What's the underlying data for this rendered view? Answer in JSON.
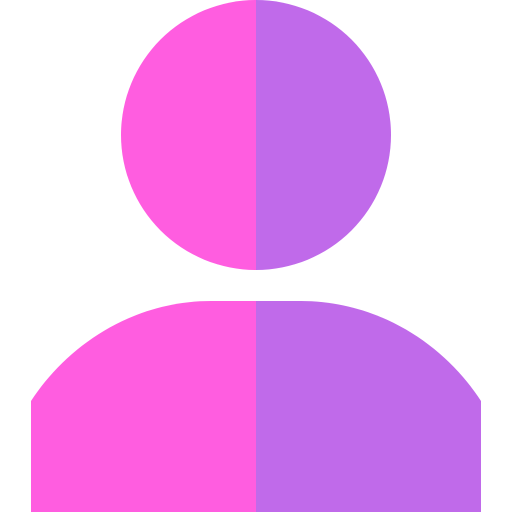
{
  "icon": {
    "name": "user-icon",
    "colors": {
      "left": "#FF5DE0",
      "right": "#C06AEA",
      "background": "#FFFFFF"
    }
  }
}
